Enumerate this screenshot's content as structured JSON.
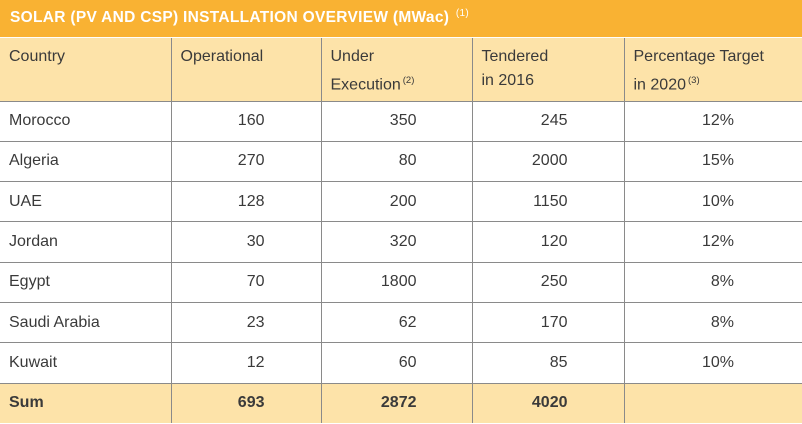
{
  "title": {
    "text": "SOLAR (PV AND CSP) INSTALLATION OVERVIEW (MWac)",
    "note": "(1)"
  },
  "headers": [
    {
      "text": "Country",
      "text2": "",
      "note": ""
    },
    {
      "text": "Operational",
      "text2": "",
      "note": ""
    },
    {
      "text": "Under",
      "text2": "Execution",
      "note": "(2)"
    },
    {
      "text": "Tendered",
      "text2": "in 2016",
      "note": ""
    },
    {
      "text": "Percentage Target",
      "text2": "in 2020",
      "note": "(3)"
    }
  ],
  "rows": [
    {
      "country": "Morocco",
      "operational": "160",
      "under_execution": "350",
      "tendered": "245",
      "target": "12%"
    },
    {
      "country": "Algeria",
      "operational": "270",
      "under_execution": "80",
      "tendered": "2000",
      "target": "15%"
    },
    {
      "country": "UAE",
      "operational": "128",
      "under_execution": "200",
      "tendered": "1150",
      "target": "10%"
    },
    {
      "country": "Jordan",
      "operational": "30",
      "under_execution": "320",
      "tendered": "120",
      "target": "12%"
    },
    {
      "country": "Egypt",
      "operational": "70",
      "under_execution": "1800",
      "tendered": "250",
      "target": "8%"
    },
    {
      "country": "Saudi Arabia",
      "operational": "23",
      "under_execution": "62",
      "tendered": "170",
      "target": "8%"
    },
    {
      "country": "Kuwait",
      "operational": "12",
      "under_execution": "60",
      "tendered": "85",
      "target": "10%"
    }
  ],
  "sum": {
    "label": "Sum",
    "operational": "693",
    "under_execution": "2872",
    "tendered": "4020",
    "target": ""
  },
  "colors": {
    "title_bg": "#f9b233",
    "header_bg": "#fde3a9",
    "grid": "#8a8a8a"
  }
}
